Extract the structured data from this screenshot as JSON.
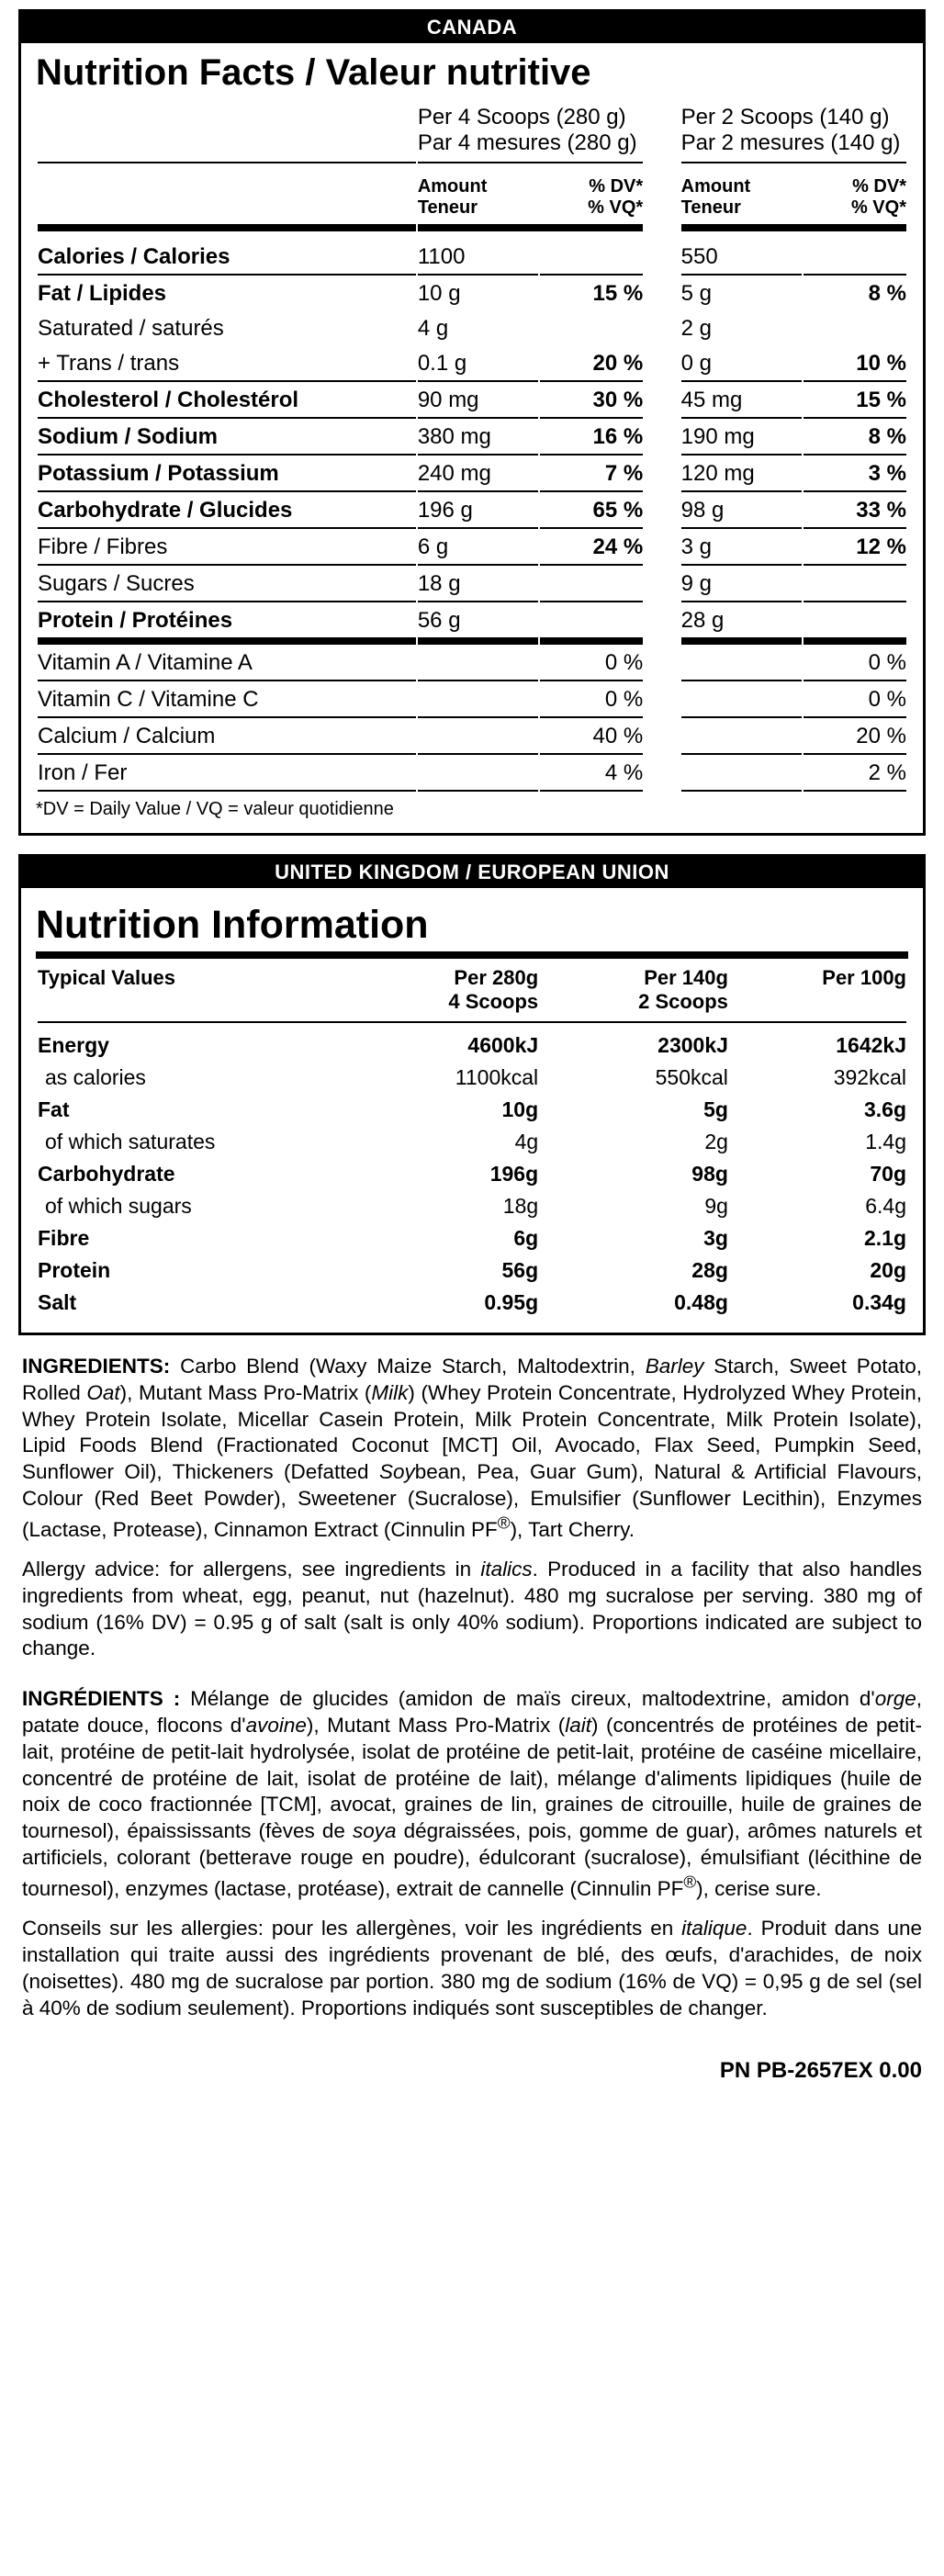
{
  "canada": {
    "header": "CANADA",
    "title": "Nutrition Facts / Valeur nutritive",
    "per4_line1": "Per 4 Scoops (280 g)",
    "per4_line2": "Par 4 mesures (280 g)",
    "per2_line1": "Per 2 Scoops (140 g)",
    "per2_line2": "Par 2 mesures (140 g)",
    "amount_label_l1": "Amount",
    "amount_label_l2": "Teneur",
    "dv_label_l1": "% DV*",
    "dv_label_l2": "% VQ*",
    "rows": [
      {
        "name": "Calories / Calories",
        "b": true,
        "sep": true,
        "a4": "1100",
        "d4": "",
        "a2": "550",
        "d2": ""
      },
      {
        "name": "Fat / Lipides",
        "b": true,
        "a4": "10 g",
        "d4": "15 %",
        "a2": "5 g",
        "d2": "8 %"
      },
      {
        "name": "Saturated / saturés",
        "indent": true,
        "a4": "4 g",
        "d4": "",
        "a2": "2 g",
        "d2": ""
      },
      {
        "name": "+ Trans / trans",
        "indent": true,
        "sep": true,
        "a4": "0.1 g",
        "d4": "20 %",
        "a2": "0 g",
        "d2": "10 %",
        "d_up": true
      },
      {
        "name": "Cholesterol / Cholestérol",
        "b": true,
        "sep": true,
        "a4": "90 mg",
        "d4": "30 %",
        "a2": "45 mg",
        "d2": "15 %"
      },
      {
        "name": "Sodium / Sodium",
        "b": true,
        "sep": true,
        "a4": "380 mg",
        "d4": "16 %",
        "a2": "190 mg",
        "d2": "8 %"
      },
      {
        "name": "Potassium / Potassium",
        "b": true,
        "sep": true,
        "a4": "240 mg",
        "d4": "7 %",
        "a2": "120 mg",
        "d2": "3 %"
      },
      {
        "name": "Carbohydrate / Glucides",
        "b": true,
        "sep": true,
        "a4": "196 g",
        "d4": "65 %",
        "a2": "98 g",
        "d2": "33 %"
      },
      {
        "name": "Fibre / Fibres",
        "indent": true,
        "sep": true,
        "a4": "6 g",
        "d4": "24 %",
        "a2": "3 g",
        "d2": "12 %"
      },
      {
        "name": "Sugars / Sucres",
        "indent": true,
        "sep": true,
        "a4": "18 g",
        "d4": "",
        "a2": "9 g",
        "d2": ""
      },
      {
        "name": "Protein / Protéines",
        "b": true,
        "thick": true,
        "a4": "56 g",
        "d4": "",
        "a2": "28 g",
        "d2": ""
      }
    ],
    "vitamins": [
      {
        "name": "Vitamin A / Vitamine A",
        "d4": "0 %",
        "d2": "0 %"
      },
      {
        "name": "Vitamin C / Vitamine C",
        "d4": "0 %",
        "d2": "0 %"
      },
      {
        "name": "Calcium / Calcium",
        "d4": "40 %",
        "d2": "20 %"
      },
      {
        "name": "Iron / Fer",
        "d4": "4 %",
        "d2": "2 %"
      }
    ],
    "footnote": "*DV = Daily Value / VQ = valeur quotidienne"
  },
  "uk": {
    "header": "UNITED KINGDOM / EUROPEAN UNION",
    "title": "Nutrition Information",
    "col_tv": "Typical Values",
    "col1_l1": "Per 280g",
    "col1_l2": "4 Scoops",
    "col2_l1": "Per 140g",
    "col2_l2": "2 Scoops",
    "col3_l1": "Per 100g",
    "rows": [
      {
        "name": "Energy",
        "b": true,
        "v1": "4600kJ",
        "v2": "2300kJ",
        "v3": "1642kJ"
      },
      {
        "name": " as calories",
        "b": false,
        "v1": "1100kcal",
        "v2": "550kcal",
        "v3": "392kcal",
        "indent": true
      },
      {
        "name": "Fat",
        "b": true,
        "v1": "10g",
        "v2": "5g",
        "v3": "3.6g"
      },
      {
        "name": " of which saturates",
        "b": false,
        "v1": "4g",
        "v2": "2g",
        "v3": "1.4g",
        "indent": true
      },
      {
        "name": "Carbohydrate",
        "b": true,
        "v1": "196g",
        "v2": "98g",
        "v3": "70g"
      },
      {
        "name": " of which sugars",
        "b": false,
        "v1": "18g",
        "v2": "9g",
        "v3": "6.4g",
        "indent": true
      },
      {
        "name": "Fibre",
        "b": true,
        "v1": "6g",
        "v2": "3g",
        "v3": "2.1g"
      },
      {
        "name": "Protein",
        "b": true,
        "v1": "56g",
        "v2": "28g",
        "v3": "20g"
      },
      {
        "name": "Salt",
        "b": true,
        "v1": "0.95g",
        "v2": "0.48g",
        "v3": "0.34g"
      }
    ]
  },
  "paras": {
    "p1_prefix": "INGREDIENTS: ",
    "p1": "Carbo Blend (Waxy Maize Starch, Maltodextrin, <i>Barley</i> Starch, Sweet Potato, Rolled <i>Oat</i>), Mutant Mass Pro-Matrix (<i>Milk</i>) (Whey Protein Concentrate, Hydrolyzed Whey Protein, Whey Protein Isolate, Micellar Casein Protein, Milk Protein Concentrate, Milk Protein Isolate), Lipid Foods Blend (Fractionated Coconut [MCT] Oil, Avocado, Flax Seed, Pumpkin Seed, Sunflower Oil), Thickeners (Defatted <i>Soy</i>bean, Pea, Guar Gum), Natural & Artificial Flavours, Colour (Red Beet Powder), Sweetener (Sucralose), Emulsifier (Sunflower Lecithin), Enzymes (Lactase, Protease), Cinnamon Extract (Cinnulin PF<sup>®</sup>), Tart Cherry.",
    "p2": "Allergy advice: for allergens, see ingredients in <i>italics</i>. Produced in a facility that also handles ingredients from wheat, egg, peanut, nut (hazelnut). 480 mg sucralose per serving. 380 mg of sodium (16% DV) = 0.95 g of salt (salt is only 40% sodium). Proportions indicated are subject to change.",
    "p3_prefix": "INGRÉDIENTS : ",
    "p3": "Mélange de glucides (amidon de maïs cireux, maltodextrine, amidon d'<i>orge</i>, patate douce, flocons d'<i>avoine</i>), Mutant Mass Pro-Matrix (<i>lait</i>) (concentrés de protéines de petit-lait, protéine de petit-lait hydrolysée, isolat de protéine de petit-lait, protéine de caséine micellaire, concentré de protéine de lait, isolat de protéine de lait), mélange d'aliments lipidiques (huile de noix de coco fractionnée [TCM], avocat, graines de lin, graines de citrouille, huile de graines de tournesol), épaississants (fèves de <i>soya</i> dégraissées, pois, gomme de guar), arômes naturels et artificiels, colorant (betterave rouge en poudre), édulcorant (sucralose), émulsifiant (lécithine de tournesol), enzymes (lactase, protéase), extrait de cannelle (Cinnulin PF<sup>®</sup>), cerise sure.",
    "p4": "Conseils sur les allergies: pour les allergènes, voir les ingrédients en <i>italique</i>. Produit dans une installation qui traite aussi des ingrédients provenant de blé, des œufs, d'arachides, de noix (noisettes). 480 mg de sucralose par portion. 380 mg de sodium (16% de VQ) = 0,95 g de sel (sel à 40% de sodium seulement). Proportions indiqués sont susceptibles de changer."
  },
  "pn": "PN PB-2657EX 0.00"
}
